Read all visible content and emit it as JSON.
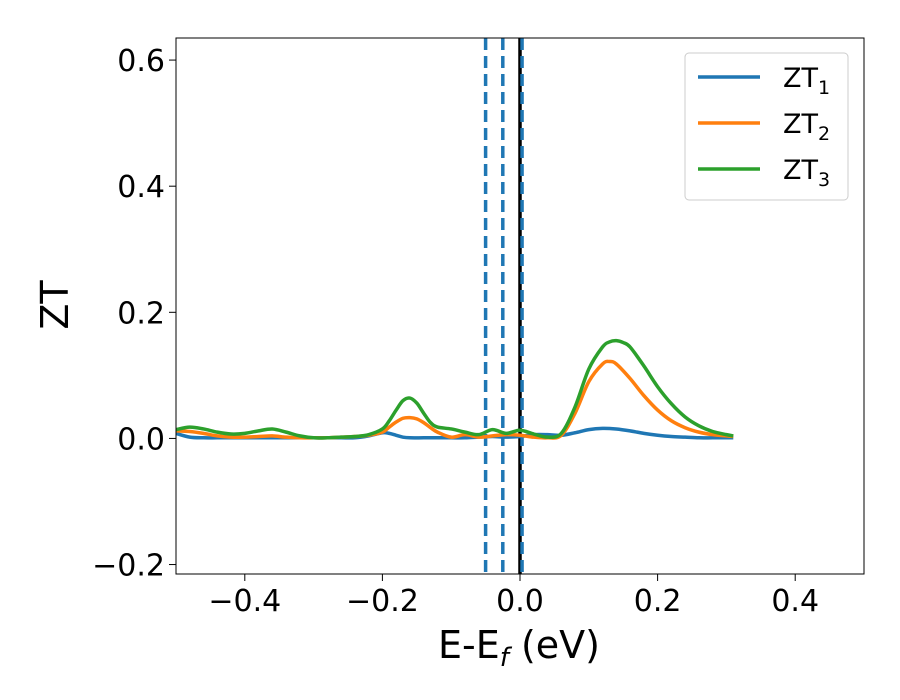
{
  "chart_data": {
    "type": "line",
    "xlabel": "E-E",
    "xlabel_sub": "f",
    "xlabel_unit": " (eV)",
    "ylabel": "ZT",
    "xlim": [
      -0.5,
      0.5
    ],
    "ylim": [
      -0.215,
      0.635
    ],
    "x_ticks": [
      -0.4,
      -0.2,
      0.0,
      0.2,
      0.4
    ],
    "x_tick_labels": [
      "−0.4",
      "−0.2",
      "0.0",
      "0.2",
      "0.4"
    ],
    "y_ticks": [
      -0.2,
      0.0,
      0.2,
      0.4,
      0.6
    ],
    "y_tick_labels": [
      "−0.2",
      "0.0",
      "0.2",
      "0.4",
      "0.6"
    ],
    "grid": false,
    "legend_position": "top-right",
    "series": [
      {
        "name": "ZT",
        "name_sub": "1",
        "color": "#1f77b4",
        "x": [
          -0.5,
          -0.48,
          -0.46,
          -0.44,
          -0.42,
          -0.4,
          -0.38,
          -0.36,
          -0.34,
          -0.32,
          -0.3,
          -0.28,
          -0.26,
          -0.24,
          -0.22,
          -0.2,
          -0.19,
          -0.18,
          -0.17,
          -0.16,
          -0.14,
          -0.12,
          -0.1,
          -0.08,
          -0.06,
          -0.04,
          -0.02,
          0.0,
          0.02,
          0.04,
          0.06,
          0.08,
          0.1,
          0.12,
          0.14,
          0.16,
          0.18,
          0.2,
          0.22,
          0.24,
          0.26,
          0.28,
          0.3,
          0.31
        ],
        "y": [
          0.008,
          0.002,
          0.001,
          0.001,
          0.001,
          0.001,
          0.001,
          0.001,
          0.001,
          0.001,
          0.001,
          0.001,
          0.001,
          0.001,
          0.004,
          0.009,
          0.008,
          0.005,
          0.002,
          0.001,
          0.001,
          0.001,
          0.001,
          0.001,
          0.002,
          0.003,
          0.002,
          0.003,
          0.006,
          0.006,
          0.005,
          0.009,
          0.014,
          0.016,
          0.015,
          0.012,
          0.008,
          0.005,
          0.003,
          0.002,
          0.001,
          0.001,
          0.001,
          0.001
        ]
      },
      {
        "name": "ZT",
        "name_sub": "2",
        "color": "#ff7f0e",
        "x": [
          -0.5,
          -0.48,
          -0.46,
          -0.44,
          -0.42,
          -0.4,
          -0.38,
          -0.36,
          -0.34,
          -0.32,
          -0.3,
          -0.28,
          -0.26,
          -0.24,
          -0.22,
          -0.2,
          -0.19,
          -0.18,
          -0.17,
          -0.16,
          -0.15,
          -0.14,
          -0.13,
          -0.12,
          -0.1,
          -0.08,
          -0.06,
          -0.04,
          -0.02,
          0.0,
          0.02,
          0.04,
          0.06,
          0.08,
          0.1,
          0.12,
          0.13,
          0.14,
          0.16,
          0.18,
          0.2,
          0.22,
          0.24,
          0.26,
          0.28,
          0.3,
          0.31
        ],
        "y": [
          0.012,
          0.011,
          0.008,
          0.004,
          0.002,
          0.002,
          0.003,
          0.004,
          0.002,
          0.001,
          0.001,
          0.001,
          0.002,
          0.003,
          0.005,
          0.01,
          0.018,
          0.026,
          0.032,
          0.033,
          0.031,
          0.025,
          0.017,
          0.01,
          0.002,
          0.006,
          0.002,
          0.004,
          0.006,
          0.005,
          0.002,
          0.001,
          0.005,
          0.04,
          0.09,
          0.118,
          0.122,
          0.118,
          0.095,
          0.068,
          0.045,
          0.028,
          0.017,
          0.01,
          0.006,
          0.004,
          0.003
        ]
      },
      {
        "name": "ZT",
        "name_sub": "3",
        "color": "#2ca02c",
        "x": [
          -0.5,
          -0.48,
          -0.46,
          -0.44,
          -0.42,
          -0.4,
          -0.38,
          -0.36,
          -0.34,
          -0.32,
          -0.3,
          -0.28,
          -0.26,
          -0.24,
          -0.22,
          -0.2,
          -0.19,
          -0.18,
          -0.17,
          -0.16,
          -0.15,
          -0.14,
          -0.13,
          -0.12,
          -0.1,
          -0.08,
          -0.06,
          -0.04,
          -0.02,
          0.0,
          0.02,
          0.04,
          0.06,
          0.08,
          0.1,
          0.12,
          0.13,
          0.14,
          0.15,
          0.16,
          0.18,
          0.2,
          0.22,
          0.24,
          0.26,
          0.28,
          0.3,
          0.31
        ],
        "y": [
          0.014,
          0.018,
          0.015,
          0.01,
          0.007,
          0.008,
          0.012,
          0.015,
          0.01,
          0.004,
          0.001,
          0.001,
          0.002,
          0.003,
          0.006,
          0.015,
          0.028,
          0.045,
          0.06,
          0.064,
          0.056,
          0.04,
          0.025,
          0.018,
          0.015,
          0.01,
          0.006,
          0.014,
          0.008,
          0.013,
          0.007,
          0.002,
          0.008,
          0.05,
          0.11,
          0.145,
          0.153,
          0.155,
          0.152,
          0.145,
          0.115,
          0.082,
          0.055,
          0.034,
          0.02,
          0.011,
          0.006,
          0.004
        ]
      }
    ],
    "vertical_lines": [
      {
        "x": -0.05,
        "color": "#1f77b4",
        "style": "dashed"
      },
      {
        "x": -0.025,
        "color": "#1f77b4",
        "style": "dashed"
      },
      {
        "x": 0.0,
        "color": "#000000",
        "style": "solid"
      },
      {
        "x": 0.003,
        "color": "#1f77b4",
        "style": "dashed"
      }
    ]
  }
}
